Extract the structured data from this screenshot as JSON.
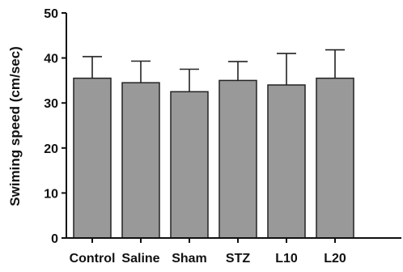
{
  "chart_data": {
    "type": "bar",
    "categories": [
      "Control",
      "Saline",
      "Sham",
      "STZ",
      "L10",
      "L20"
    ],
    "values": [
      35.5,
      34.5,
      32.5,
      35.0,
      34.0,
      35.5
    ],
    "errors": [
      4.8,
      4.8,
      5.0,
      4.2,
      7.0,
      6.3
    ],
    "ylabel": "Swiming speed (cm/sec)",
    "xlabel": "",
    "ylim": [
      0,
      50
    ],
    "yticks": [
      0,
      10,
      20,
      30,
      40,
      50
    ],
    "bar_color": "#999999",
    "bar_edge_color": "#222222",
    "grid": false
  }
}
